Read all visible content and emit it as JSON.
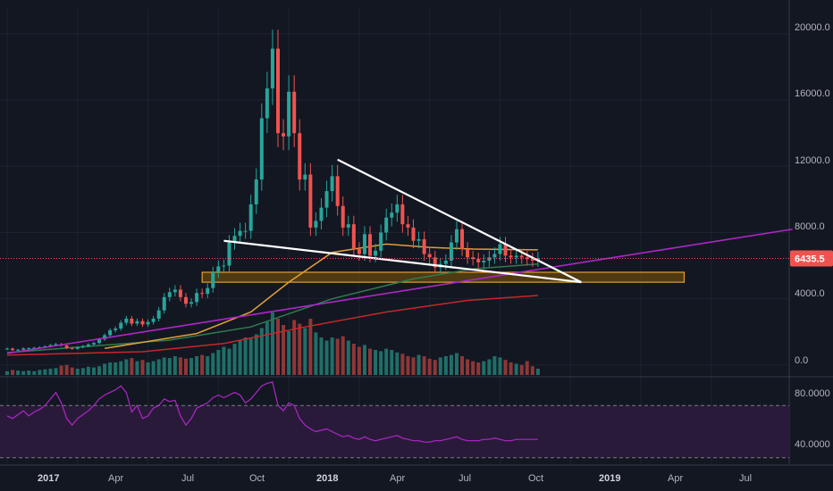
{
  "chart_data": {
    "type": "candlestick",
    "instrument": "BTC weekly",
    "colors": {
      "background": "#131722",
      "up": "#26a69a",
      "down": "#ef5350",
      "volume_up": "#1f6f68",
      "volume_down": "#8e3737",
      "ma_orange": "#e3a033",
      "ma_green": "#2e7d4f",
      "ma_red": "#c62828",
      "trendline": "#ffffff",
      "channel": "#b026c9",
      "support_zone_fill": "#6b4a0c",
      "support_zone_border": "#e3a033",
      "price_line": "#ef5350",
      "rsi_line": "#b026c9",
      "rsi_band": "#2a1a3a"
    },
    "price_axis": {
      "ticks": [
        "20000.0",
        "16000.0",
        "12000.0",
        "8000.0",
        "4000.0",
        "0.0"
      ],
      "tick_values": [
        20000,
        16000,
        12000,
        8000,
        4000,
        0
      ],
      "ylim": [
        -600,
        21500
      ]
    },
    "current_price": "6435.5",
    "current_price_value": 6435.5,
    "rsi_axis": {
      "ticks": [
        "80.0000",
        "40.0000"
      ],
      "tick_values": [
        80,
        40
      ],
      "upper_band": 70,
      "lower_band": 30,
      "ylim": [
        25,
        90
      ]
    },
    "time_axis": {
      "labels": [
        "2017",
        "Apr",
        "Jul",
        "Oct",
        "2018",
        "Apr",
        "Jul",
        "Oct",
        "2019",
        "Apr",
        "Jul"
      ],
      "bold": [
        true,
        false,
        false,
        false,
        true,
        false,
        false,
        false,
        true,
        false,
        false
      ],
      "week_index": [
        0,
        13,
        26,
        39,
        52,
        65,
        78,
        91,
        104,
        117,
        130
      ]
    },
    "weeks_visible": 145,
    "week_closes": [
      990,
      900,
      920,
      1000,
      1010,
      1040,
      1070,
      1130,
      1200,
      1260,
      1180,
      1030,
      980,
      1070,
      1140,
      1240,
      1330,
      1550,
      1800,
      2100,
      2200,
      2550,
      2800,
      2500,
      2650,
      2450,
      2600,
      2800,
      3300,
      4100,
      4400,
      4550,
      4100,
      3700,
      3800,
      4350,
      4300,
      4650,
      5600,
      5950,
      6000,
      7400,
      7800,
      8100,
      8100,
      9700,
      11200,
      14900,
      16700,
      19100,
      14000,
      13800,
      16500,
      14000,
      11200,
      11500,
      8300,
      8700,
      9500,
      10500,
      11400,
      9600,
      8300,
      8500,
      7000,
      6700,
      7900,
      6600,
      6900,
      8000,
      8900,
      9200,
      9700,
      8500,
      8300,
      7500,
      7600,
      6700,
      6500,
      5900,
      6100,
      6300,
      7400,
      8200,
      7000,
      6500,
      6400,
      6200,
      6300,
      6500,
      6700,
      7300,
      6600,
      6500,
      6600,
      6500,
      6400,
      6300,
      6450
    ],
    "volume_relative": [
      0.06,
      0.08,
      0.07,
      0.06,
      0.07,
      0.06,
      0.08,
      0.09,
      0.1,
      0.11,
      0.15,
      0.16,
      0.12,
      0.1,
      0.11,
      0.13,
      0.12,
      0.14,
      0.18,
      0.2,
      0.2,
      0.22,
      0.25,
      0.27,
      0.22,
      0.24,
      0.2,
      0.22,
      0.25,
      0.28,
      0.27,
      0.3,
      0.28,
      0.26,
      0.27,
      0.3,
      0.32,
      0.3,
      0.35,
      0.4,
      0.45,
      0.42,
      0.5,
      0.55,
      0.6,
      0.58,
      0.65,
      0.75,
      0.85,
      1.0,
      0.9,
      0.8,
      0.7,
      0.88,
      0.82,
      0.75,
      0.9,
      0.68,
      0.6,
      0.55,
      0.6,
      0.58,
      0.62,
      0.55,
      0.5,
      0.45,
      0.48,
      0.42,
      0.4,
      0.38,
      0.42,
      0.4,
      0.36,
      0.34,
      0.3,
      0.28,
      0.32,
      0.3,
      0.26,
      0.24,
      0.28,
      0.3,
      0.32,
      0.35,
      0.3,
      0.25,
      0.22,
      0.2,
      0.22,
      0.25,
      0.3,
      0.28,
      0.24,
      0.2,
      0.18,
      0.16,
      0.22,
      0.14,
      0.1
    ],
    "ma_orange_values": [
      [
        18,
        1000
      ],
      [
        35,
        1900
      ],
      [
        45,
        3200
      ],
      [
        52,
        5000
      ],
      [
        60,
        6800
      ],
      [
        70,
        7300
      ],
      [
        78,
        7100
      ],
      [
        86,
        7000
      ],
      [
        98,
        6950
      ]
    ],
    "ma_green_values": [
      [
        0,
        750
      ],
      [
        30,
        1500
      ],
      [
        45,
        2300
      ],
      [
        60,
        4000
      ],
      [
        75,
        5200
      ],
      [
        86,
        5800
      ],
      [
        98,
        6100
      ]
    ],
    "ma_red_values": [
      [
        0,
        600
      ],
      [
        25,
        800
      ],
      [
        40,
        1300
      ],
      [
        55,
        2300
      ],
      [
        70,
        3200
      ],
      [
        85,
        3900
      ],
      [
        98,
        4200
      ]
    ],
    "channel_line": [
      [
        0,
        700
      ],
      [
        145,
        8200
      ]
    ],
    "trendline_lower": [
      [
        40,
        7500
      ],
      [
        106,
        5000
      ]
    ],
    "trendline_upper": [
      [
        61,
        12400
      ],
      [
        106,
        5000
      ]
    ],
    "support_zone": {
      "from_week": 36,
      "to_week": 125,
      "low": 5000,
      "high": 5600
    },
    "rsi_values": [
      62,
      60,
      63,
      66,
      62,
      65,
      67,
      70,
      75,
      80,
      72,
      60,
      55,
      60,
      63,
      66,
      70,
      75,
      78,
      80,
      82,
      85,
      80,
      65,
      70,
      60,
      62,
      68,
      70,
      75,
      73,
      74,
      62,
      55,
      60,
      68,
      70,
      72,
      76,
      78,
      76,
      78,
      80,
      78,
      72,
      75,
      80,
      85,
      87,
      88,
      70,
      66,
      72,
      70,
      60,
      55,
      52,
      50,
      51,
      52,
      50,
      48,
      46,
      47,
      45,
      44,
      46,
      44,
      43,
      44,
      45,
      46,
      47,
      45,
      44,
      43,
      43,
      42,
      42,
      43,
      43,
      44,
      45,
      46,
      44,
      43,
      43,
      43,
      44,
      44,
      45,
      44,
      43,
      43,
      44,
      44,
      44,
      44,
      44
    ]
  }
}
